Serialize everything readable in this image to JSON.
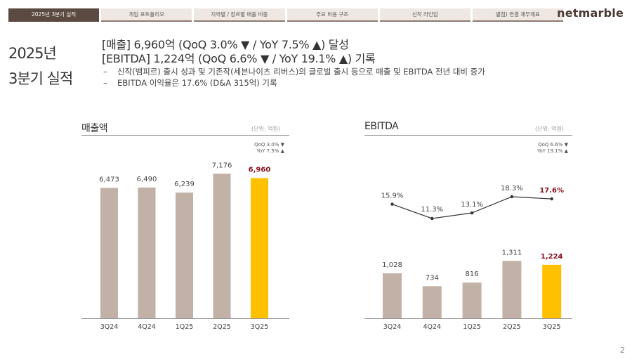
{
  "tabs": [
    {
      "label": "2025년 3분기 실적",
      "active": true
    },
    {
      "label": "게임 포트폴리오",
      "active": false
    },
    {
      "label": "지역별 / 장르별 매출 비중",
      "active": false
    },
    {
      "label": "주요 비용 구조",
      "active": false
    },
    {
      "label": "신작 라인업",
      "active": false
    },
    {
      "label": "별첨) 연결 재무제표",
      "active": false
    }
  ],
  "logo": "netmarble",
  "side_title": {
    "line1": "2025년",
    "line2": "3분기 실적"
  },
  "headline": {
    "line1": "[매출] 6,960억 (QoQ 3.0% ▼ / YoY 7.5% ▲) 달성",
    "line2": "[EBITDA] 1,224억 (QoQ 6.6% ▼ / YoY 19.1% ▲) 기록",
    "bullets": [
      "신작(뱀피르) 출시 성과 및 기존작(세븐나이츠 리버스)의 글로벌 출시 등으로 매출 및 EBITDA 전년 대비 증가",
      "EBITDA 이익율은 17.6% (D&A 315억) 기록"
    ]
  },
  "page_number": "2",
  "colors": {
    "bar": "#c2b1a6",
    "highlight_bar": "#ffc000",
    "highlight_text": "#8b0f1e",
    "line": "#333333"
  },
  "chart_data": [
    {
      "type": "bar",
      "title": "매출액",
      "unit": "(단위: 억원)",
      "qoq": "QoQ 3.0% ▼",
      "yoy": "YoY 7.5% ▲",
      "categories": [
        "3Q24",
        "4Q24",
        "1Q25",
        "2Q25",
        "3Q25"
      ],
      "values": [
        6473,
        6490,
        6239,
        7176,
        6960
      ],
      "value_labels": [
        "6,473",
        "6,490",
        "6,239",
        "7,176",
        "6,960"
      ],
      "highlight_index": 4,
      "ylim": [
        0,
        8000
      ]
    },
    {
      "type": "bar+line",
      "title": "EBITDA",
      "unit": "(단위: 억원)",
      "qoq": "QoQ 6.6% ▼",
      "yoy": "YoY 19.1% ▲",
      "categories": [
        "3Q24",
        "4Q24",
        "1Q25",
        "2Q25",
        "3Q25"
      ],
      "values": [
        1028,
        734,
        816,
        1311,
        1224
      ],
      "value_labels": [
        "1,028",
        "734",
        "816",
        "1,311",
        "1,224"
      ],
      "margin": [
        15.9,
        11.3,
        13.1,
        18.3,
        17.6
      ],
      "margin_labels": [
        "15.9%",
        "11.3%",
        "13.1%",
        "18.3%",
        "17.6%"
      ],
      "highlight_index": 4,
      "ylim": [
        0,
        1500
      ]
    }
  ]
}
